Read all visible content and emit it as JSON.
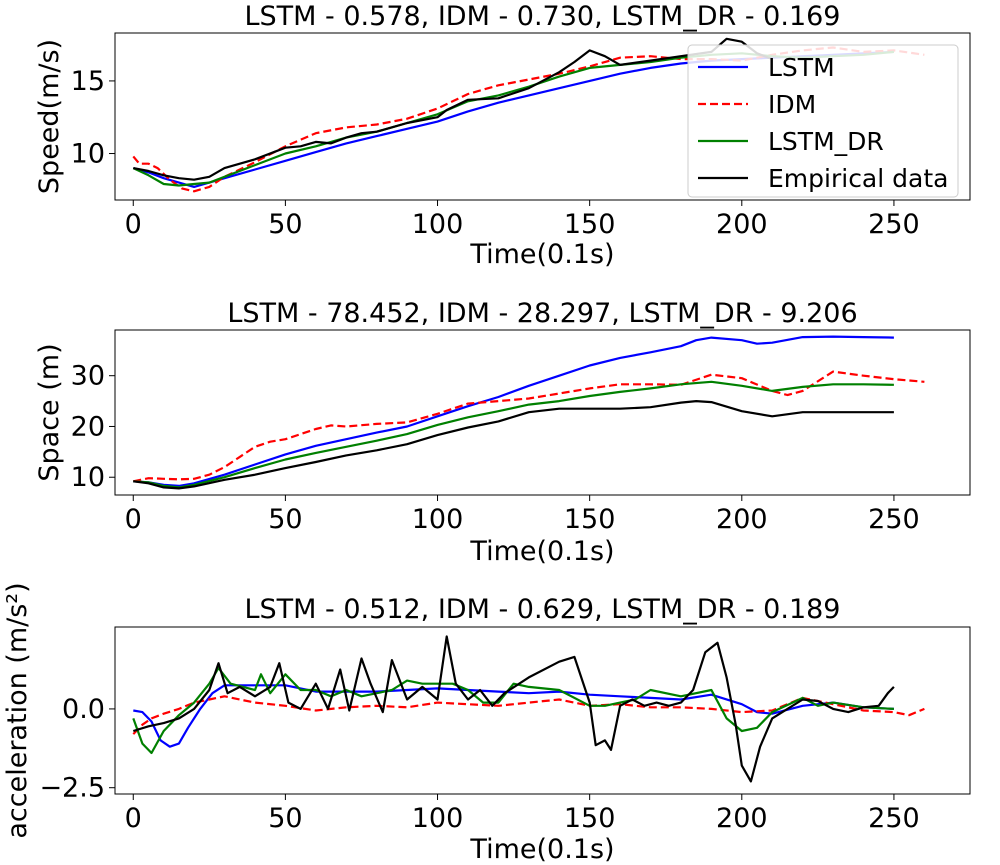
{
  "chart_data": [
    {
      "type": "line",
      "title": "LSTM - 0.578,  IDM - 0.730,  LSTM_DR - 0.169",
      "xlabel": "Time(0.1s)",
      "ylabel": "Speed(m/s)",
      "xlim": [
        -6,
        275
      ],
      "ylim": [
        6.8,
        18.3
      ],
      "xticks": [
        0,
        50,
        100,
        150,
        200,
        250
      ],
      "yticks": [
        10,
        15
      ],
      "legend": [
        "LSTM",
        "IDM",
        "LSTM_DR",
        "Empirical data"
      ],
      "legend_position": "upper-right",
      "series": [
        {
          "name": "LSTM",
          "color": "#0000ff",
          "dash": "solid",
          "x": [
            0,
            5,
            10,
            20,
            30,
            40,
            50,
            60,
            70,
            80,
            90,
            100,
            110,
            120,
            130,
            140,
            150,
            160,
            170,
            180,
            190,
            200,
            210,
            220,
            230,
            240,
            250
          ],
          "y": [
            9.0,
            8.7,
            8.3,
            7.7,
            8.3,
            8.9,
            9.5,
            10.1,
            10.7,
            11.2,
            11.7,
            12.2,
            12.9,
            13.5,
            14.0,
            14.5,
            15.0,
            15.5,
            15.9,
            16.2,
            16.4,
            16.5,
            16.6,
            16.7,
            16.8,
            16.9,
            17.0
          ]
        },
        {
          "name": "IDM",
          "color": "#ff0000",
          "dash": "dashed",
          "x": [
            0,
            2,
            5,
            8,
            12,
            16,
            20,
            25,
            30,
            35,
            40,
            50,
            60,
            70,
            80,
            90,
            100,
            110,
            120,
            130,
            140,
            150,
            160,
            170,
            180,
            190,
            200,
            210,
            220,
            230,
            240,
            250,
            260
          ],
          "y": [
            9.8,
            9.3,
            9.3,
            9.0,
            8.2,
            7.6,
            7.4,
            7.7,
            8.4,
            8.9,
            9.4,
            10.5,
            11.4,
            11.8,
            12.0,
            12.4,
            13.1,
            14.1,
            14.7,
            15.1,
            15.5,
            16.0,
            16.6,
            16.7,
            16.5,
            16.5,
            16.4,
            16.8,
            17.1,
            17.3,
            17.0,
            17.1,
            16.8
          ]
        },
        {
          "name": "LSTM_DR",
          "color": "#008000",
          "dash": "solid",
          "x": [
            0,
            5,
            10,
            15,
            20,
            25,
            30,
            40,
            50,
            60,
            70,
            80,
            90,
            100,
            110,
            120,
            130,
            140,
            150,
            160,
            170,
            180,
            190,
            200,
            210,
            220,
            230,
            240,
            250
          ],
          "y": [
            9.0,
            8.5,
            7.9,
            7.8,
            7.9,
            8.0,
            8.4,
            9.2,
            10.0,
            10.5,
            11.1,
            11.5,
            12.1,
            12.7,
            13.6,
            14.0,
            14.6,
            15.3,
            15.9,
            16.1,
            16.3,
            16.6,
            16.8,
            16.9,
            16.7,
            16.6,
            16.7,
            16.8,
            17.0
          ]
        },
        {
          "name": "Empirical data",
          "color": "#000000",
          "dash": "solid",
          "x": [
            0,
            5,
            10,
            15,
            20,
            25,
            30,
            40,
            50,
            55,
            60,
            65,
            70,
            75,
            80,
            90,
            100,
            103,
            110,
            120,
            130,
            140,
            145,
            150,
            155,
            160,
            170,
            180,
            190,
            195,
            200,
            205,
            210
          ],
          "y": [
            9.0,
            8.8,
            8.5,
            8.3,
            8.2,
            8.4,
            9.0,
            9.6,
            10.4,
            10.5,
            10.8,
            10.7,
            11.1,
            11.4,
            11.5,
            12.1,
            12.5,
            13.0,
            13.7,
            13.8,
            14.5,
            15.6,
            16.3,
            17.1,
            16.7,
            16.1,
            16.4,
            16.7,
            17.0,
            17.9,
            17.7,
            16.9,
            16.5
          ]
        }
      ]
    },
    {
      "type": "line",
      "title": "LSTM - 78.452,  IDM - 28.297,  LSTM_DR - 9.206",
      "xlabel": "Time(0.1s)",
      "ylabel": "Space (m)",
      "xlim": [
        -6,
        275
      ],
      "ylim": [
        6.5,
        39
      ],
      "xticks": [
        0,
        50,
        100,
        150,
        200,
        250
      ],
      "yticks": [
        10,
        20,
        30
      ],
      "series": [
        {
          "name": "LSTM",
          "color": "#0000ff",
          "dash": "solid",
          "x": [
            0,
            5,
            10,
            15,
            20,
            30,
            40,
            50,
            60,
            70,
            80,
            90,
            100,
            110,
            120,
            130,
            140,
            150,
            160,
            170,
            180,
            185,
            190,
            200,
            205,
            210,
            220,
            230,
            240,
            250
          ],
          "y": [
            9.2,
            9.0,
            8.5,
            8.3,
            8.8,
            10.5,
            12.5,
            14.5,
            16.2,
            17.5,
            18.8,
            20.0,
            22.0,
            24.0,
            25.8,
            28.0,
            30.0,
            32.0,
            33.5,
            34.6,
            35.8,
            37.0,
            37.5,
            37.0,
            36.3,
            36.5,
            37.6,
            37.7,
            37.6,
            37.5
          ]
        },
        {
          "name": "IDM",
          "color": "#ff0000",
          "dash": "dashed",
          "x": [
            0,
            5,
            10,
            15,
            20,
            25,
            30,
            35,
            40,
            45,
            50,
            55,
            60,
            65,
            70,
            80,
            90,
            100,
            110,
            120,
            130,
            140,
            150,
            160,
            170,
            180,
            190,
            200,
            210,
            215,
            220,
            230,
            240,
            250,
            260
          ],
          "y": [
            9.2,
            9.8,
            9.7,
            9.6,
            9.7,
            10.5,
            12.0,
            14.0,
            16.0,
            17.0,
            17.5,
            18.5,
            19.5,
            20.2,
            20.0,
            20.5,
            20.8,
            22.5,
            24.5,
            25.0,
            25.5,
            26.5,
            27.5,
            28.3,
            28.3,
            28.2,
            30.2,
            29.5,
            27.0,
            26.2,
            27.0,
            30.8,
            30.0,
            29.3,
            28.8
          ]
        },
        {
          "name": "LSTM_DR",
          "color": "#008000",
          "dash": "solid",
          "x": [
            0,
            5,
            10,
            15,
            20,
            30,
            40,
            50,
            60,
            70,
            80,
            90,
            100,
            110,
            120,
            130,
            140,
            150,
            160,
            170,
            180,
            190,
            200,
            210,
            220,
            230,
            240,
            250
          ],
          "y": [
            9.2,
            9.0,
            8.3,
            8.0,
            8.5,
            10.0,
            11.8,
            13.5,
            14.8,
            16.0,
            17.2,
            18.5,
            20.3,
            21.8,
            23.0,
            24.3,
            25.0,
            26.0,
            26.8,
            27.5,
            28.3,
            28.8,
            28.0,
            27.0,
            27.8,
            28.3,
            28.3,
            28.2
          ]
        },
        {
          "name": "Empirical data",
          "color": "#000000",
          "dash": "solid",
          "x": [
            0,
            5,
            10,
            15,
            20,
            30,
            40,
            50,
            60,
            70,
            80,
            90,
            100,
            110,
            120,
            130,
            140,
            150,
            160,
            170,
            180,
            185,
            190,
            200,
            210,
            220,
            230,
            240,
            250
          ],
          "y": [
            9.2,
            8.8,
            8.0,
            7.8,
            8.2,
            9.5,
            10.5,
            11.8,
            13.0,
            14.3,
            15.3,
            16.5,
            18.3,
            19.8,
            21.0,
            22.8,
            23.5,
            23.5,
            23.5,
            23.8,
            24.7,
            25.0,
            24.8,
            23.0,
            22.0,
            22.8,
            22.8,
            22.8,
            22.8
          ]
        }
      ]
    },
    {
      "type": "line",
      "title": "LSTM - 0.512,  IDM - 0.629,  LSTM_DR - 0.189",
      "xlabel": "Time(0.1s)",
      "ylabel": "acceleration (m/s²)",
      "xlim": [
        -6,
        275
      ],
      "ylim": [
        -2.7,
        2.6
      ],
      "xticks": [
        0,
        50,
        100,
        150,
        200,
        250
      ],
      "yticks": [
        -2.5,
        0.0
      ],
      "ytick_labels": [
        "−2.5",
        "0.0"
      ],
      "series": [
        {
          "name": "LSTM",
          "color": "#0000ff",
          "dash": "solid",
          "x": [
            0,
            3,
            6,
            9,
            12,
            15,
            18,
            22,
            26,
            30,
            40,
            50,
            60,
            70,
            80,
            90,
            100,
            110,
            120,
            130,
            140,
            150,
            160,
            170,
            180,
            190,
            200,
            205,
            210,
            220,
            230,
            240,
            250
          ],
          "y": [
            -0.05,
            -0.1,
            -0.4,
            -1.0,
            -1.2,
            -1.1,
            -0.6,
            0.0,
            0.5,
            0.75,
            0.75,
            0.75,
            0.55,
            0.55,
            0.55,
            0.6,
            0.65,
            0.6,
            0.55,
            0.5,
            0.55,
            0.45,
            0.4,
            0.35,
            0.3,
            0.45,
            0.15,
            -0.1,
            -0.15,
            0.1,
            0.2,
            0.05,
            0.0
          ]
        },
        {
          "name": "IDM",
          "color": "#ff0000",
          "dash": "dashed",
          "x": [
            0,
            3,
            6,
            10,
            15,
            20,
            25,
            30,
            35,
            40,
            50,
            60,
            70,
            80,
            90,
            100,
            110,
            120,
            130,
            140,
            150,
            160,
            170,
            180,
            190,
            200,
            210,
            220,
            230,
            240,
            250,
            255,
            260
          ],
          "y": [
            -0.8,
            -0.5,
            -0.3,
            -0.15,
            0.0,
            0.2,
            0.3,
            0.4,
            0.3,
            0.2,
            0.1,
            -0.05,
            0.05,
            0.1,
            0.05,
            0.2,
            0.15,
            0.1,
            0.2,
            0.3,
            0.1,
            0.15,
            0.05,
            0.05,
            0.0,
            -0.1,
            -0.05,
            0.35,
            0.15,
            -0.05,
            -0.1,
            -0.2,
            0.0
          ]
        },
        {
          "name": "LSTM_DR",
          "color": "#008000",
          "dash": "solid",
          "x": [
            0,
            3,
            6,
            10,
            15,
            20,
            25,
            28,
            32,
            40,
            42,
            45,
            50,
            55,
            60,
            65,
            70,
            75,
            80,
            85,
            90,
            95,
            100,
            105,
            110,
            115,
            120,
            125,
            130,
            140,
            150,
            155,
            160,
            165,
            170,
            180,
            190,
            195,
            200,
            205,
            210,
            220,
            225,
            230,
            240,
            250
          ],
          "y": [
            -0.3,
            -1.1,
            -1.4,
            -0.7,
            -0.2,
            0.2,
            0.8,
            1.3,
            0.8,
            0.6,
            1.1,
            0.5,
            1.1,
            0.6,
            0.6,
            0.4,
            0.6,
            0.4,
            0.5,
            0.6,
            0.9,
            0.8,
            0.8,
            0.8,
            0.6,
            0.2,
            0.2,
            0.8,
            0.7,
            0.6,
            0.1,
            0.1,
            0.2,
            0.3,
            0.6,
            0.4,
            0.6,
            -0.3,
            -0.7,
            -0.6,
            -0.1,
            0.35,
            0.1,
            0.2,
            0.05,
            0.0
          ]
        },
        {
          "name": "Empirical data",
          "color": "#000000",
          "dash": "solid",
          "x": [
            0,
            5,
            10,
            15,
            20,
            25,
            28,
            31,
            35,
            40,
            45,
            48,
            51,
            55,
            60,
            64,
            68,
            71,
            75,
            78,
            82,
            85,
            90,
            95,
            100,
            103,
            106,
            110,
            114,
            118,
            122,
            130,
            140,
            145,
            150,
            152,
            155,
            157,
            160,
            164,
            168,
            172,
            176,
            180,
            184,
            188,
            192,
            195,
            198,
            200,
            203,
            206,
            210,
            215,
            220,
            225,
            230,
            235,
            240,
            245,
            248,
            250
          ],
          "y": [
            -0.7,
            -0.55,
            -0.45,
            -0.3,
            0.0,
            0.6,
            1.45,
            0.5,
            0.7,
            0.4,
            0.7,
            1.45,
            0.2,
            0.0,
            0.8,
            0.0,
            1.25,
            -0.05,
            1.6,
            0.8,
            -0.1,
            1.55,
            0.3,
            0.7,
            0.3,
            2.3,
            0.8,
            0.3,
            0.6,
            0.1,
            0.5,
            1.0,
            1.5,
            1.65,
            0.2,
            -1.15,
            -1.0,
            -1.3,
            0.1,
            0.3,
            0.1,
            0.2,
            0.1,
            0.2,
            0.6,
            1.8,
            2.1,
            1.0,
            -0.5,
            -1.8,
            -2.3,
            -1.2,
            -0.3,
            0.0,
            0.3,
            0.25,
            0.0,
            -0.1,
            0.05,
            0.1,
            0.5,
            0.7
          ]
        }
      ]
    }
  ]
}
